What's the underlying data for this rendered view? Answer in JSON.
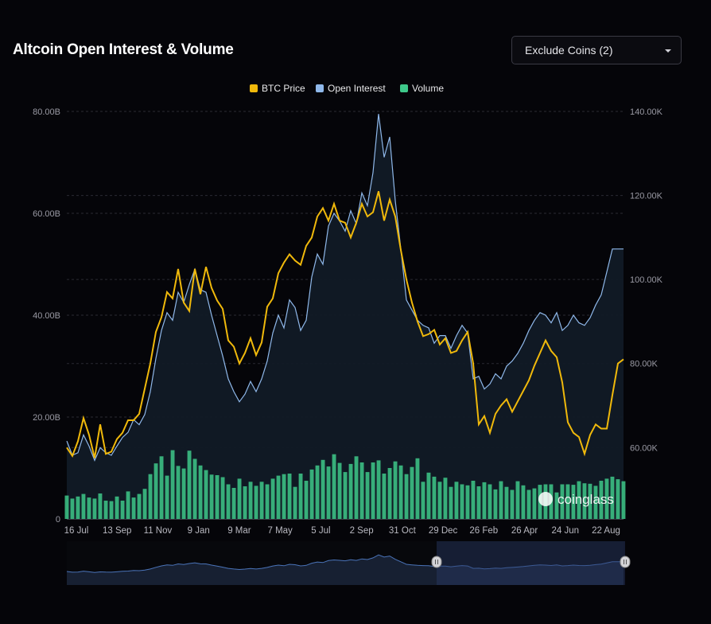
{
  "header": {
    "title": "Altcoin Open Interest & Volume",
    "exclude_label": "Exclude Coins (2)"
  },
  "colors": {
    "btc_price": "#f0b90b",
    "open_interest": "#8fb8ea",
    "volume": "#3ec98a",
    "background": "#050509",
    "grid": "#2a2a33"
  },
  "watermark": "coinglass",
  "icons": {
    "dropdown": "chevron-down-icon",
    "watermark_logo": "coinglass-logo-icon",
    "navigator_handle": "drag-handle-icon"
  },
  "chart_data": {
    "type": "line",
    "title": "",
    "legend": [
      "BTC Price",
      "Open Interest",
      "Volume"
    ],
    "legend_position": "top-center",
    "grid": true,
    "x_ticks": [
      "16 Jul",
      "13 Sep",
      "11 Nov",
      "9 Jan",
      "9 Mar",
      "7 May",
      "5 Jul",
      "2 Sep",
      "31 Oct",
      "29 Dec",
      "26 Feb",
      "26 Apr",
      "24 Jun",
      "22 Aug"
    ],
    "y_left": {
      "ticks": [
        "0",
        "20.00B",
        "40.00B",
        "60.00B",
        "80.00B"
      ],
      "min": 0,
      "max": 80
    },
    "y_right": {
      "ticks": [
        "60.00K",
        "80.00K",
        "100.00K",
        "120.00K",
        "140.00K"
      ],
      "min": 43000,
      "max": 140000
    },
    "time_index": [
      0,
      2,
      4,
      6,
      8,
      10,
      12,
      14,
      16,
      18,
      20,
      22,
      24,
      26,
      28,
      30,
      32,
      34,
      36,
      38,
      40,
      42,
      44,
      46,
      48,
      50,
      52,
      54,
      56,
      58,
      60,
      62,
      64,
      66,
      68,
      70,
      72,
      74,
      76,
      78,
      80,
      82,
      84,
      86,
      88,
      90,
      92,
      94,
      96,
      98,
      100,
      102,
      104,
      106,
      108,
      110,
      112,
      114,
      116,
      118,
      120,
      122,
      124,
      126,
      128,
      130,
      132,
      134,
      136,
      138,
      140,
      142,
      144,
      146,
      148,
      150,
      152,
      154,
      156,
      158,
      160,
      162,
      164,
      166,
      168,
      170,
      172,
      174,
      176,
      178,
      180,
      182,
      184,
      186,
      188,
      190,
      192,
      194,
      196,
      198,
      200
    ],
    "series": [
      {
        "name": "Open Interest",
        "axis": "left",
        "values": [
          15.3,
          12.5,
          13.0,
          16.5,
          14.3,
          11.5,
          14.0,
          13.0,
          12.5,
          14.3,
          16.0,
          17.0,
          19.5,
          18.5,
          20.5,
          25.0,
          31.5,
          37.0,
          40.5,
          39.0,
          44.5,
          42.5,
          46.0,
          49.0,
          45.0,
          44.5,
          40.0,
          36.0,
          32.0,
          27.5,
          25.0,
          23.0,
          24.5,
          27.0,
          25.0,
          27.5,
          31.0,
          36.5,
          40.0,
          37.5,
          43.0,
          41.5,
          37.0,
          39.0,
          47.5,
          52.0,
          50.0,
          57.5,
          60.0,
          58.5,
          56.5,
          60.5,
          58.0,
          64.0,
          61.5,
          68.0,
          79.5,
          71.0,
          75.0,
          62.5,
          53.0,
          43.0,
          41.0,
          39.0,
          38.0,
          37.5,
          34.5,
          36.0,
          36.0,
          33.5,
          36.0,
          38.0,
          36.5,
          27.5,
          28.0,
          25.5,
          26.5,
          28.5,
          27.5,
          30.0,
          31.0,
          32.5,
          34.5,
          37.0,
          39.0,
          40.5,
          40.0,
          38.5,
          40.5,
          37.0,
          38.0,
          40.0,
          38.5,
          38.0,
          39.5,
          42.0,
          44.0,
          48.5,
          53.0,
          53.0,
          53.0
        ]
      },
      {
        "name": "BTC Price",
        "axis": "right",
        "values": [
          60000,
          58000,
          61500,
          67000,
          63000,
          57500,
          65500,
          58500,
          59000,
          62000,
          63500,
          66500,
          66500,
          68000,
          74000,
          80000,
          87500,
          91000,
          97000,
          95500,
          102500,
          94500,
          92500,
          102500,
          96500,
          103000,
          98000,
          95000,
          93000,
          85500,
          84000,
          80000,
          82500,
          86000,
          82000,
          85000,
          93500,
          95500,
          101500,
          104000,
          106000,
          104500,
          103500,
          108000,
          110000,
          115000,
          117000,
          114000,
          118000,
          114000,
          113500,
          110000,
          113500,
          118000,
          115000,
          116000,
          121000,
          114000,
          119000,
          115000,
          107000,
          100000,
          94500,
          90000,
          86500,
          87000,
          88000,
          84500,
          86000,
          82500,
          83000,
          85500,
          87500,
          80000,
          65500,
          67500,
          63500,
          68000,
          70000,
          71500,
          68500,
          71000,
          73500,
          76000,
          79500,
          82500,
          85500,
          83000,
          81500,
          75500,
          66000,
          63500,
          62500,
          58500,
          63000,
          65500,
          64500,
          64500,
          72500,
          80000,
          81000
        ]
      },
      {
        "name": "Volume",
        "axis": "left",
        "values": [
          4.6,
          4.0,
          4.4,
          4.9,
          4.2,
          4.0,
          5.0,
          3.6,
          3.5,
          4.4,
          3.6,
          5.4,
          4.2,
          4.9,
          5.9,
          8.8,
          10.9,
          12.3,
          8.5,
          13.5,
          10.4,
          9.9,
          13.4,
          11.8,
          10.5,
          9.6,
          8.7,
          8.6,
          8.2,
          6.8,
          6.1,
          7.9,
          6.4,
          7.3,
          6.5,
          7.3,
          6.8,
          7.9,
          8.5,
          8.8,
          8.9,
          6.3,
          8.9,
          7.5,
          9.7,
          10.5,
          11.6,
          10.3,
          12.7,
          11.0,
          9.2,
          10.8,
          12.3,
          11.1,
          9.2,
          11.1,
          11.5,
          8.9,
          10.0,
          11.3,
          10.5,
          8.8,
          10.2,
          11.9,
          7.3,
          9.1,
          8.3,
          7.3,
          8.1,
          6.3,
          7.3,
          6.8,
          6.6,
          7.5,
          6.4,
          7.2,
          6.8,
          5.8,
          7.4,
          6.3,
          5.7,
          7.4,
          6.6,
          5.7,
          6.0,
          6.7,
          6.8,
          6.8,
          5.2,
          6.8,
          6.8,
          6.7,
          7.4,
          7.0,
          6.9,
          6.5,
          7.5,
          7.9,
          8.3,
          7.8,
          7.4
        ]
      }
    ]
  }
}
